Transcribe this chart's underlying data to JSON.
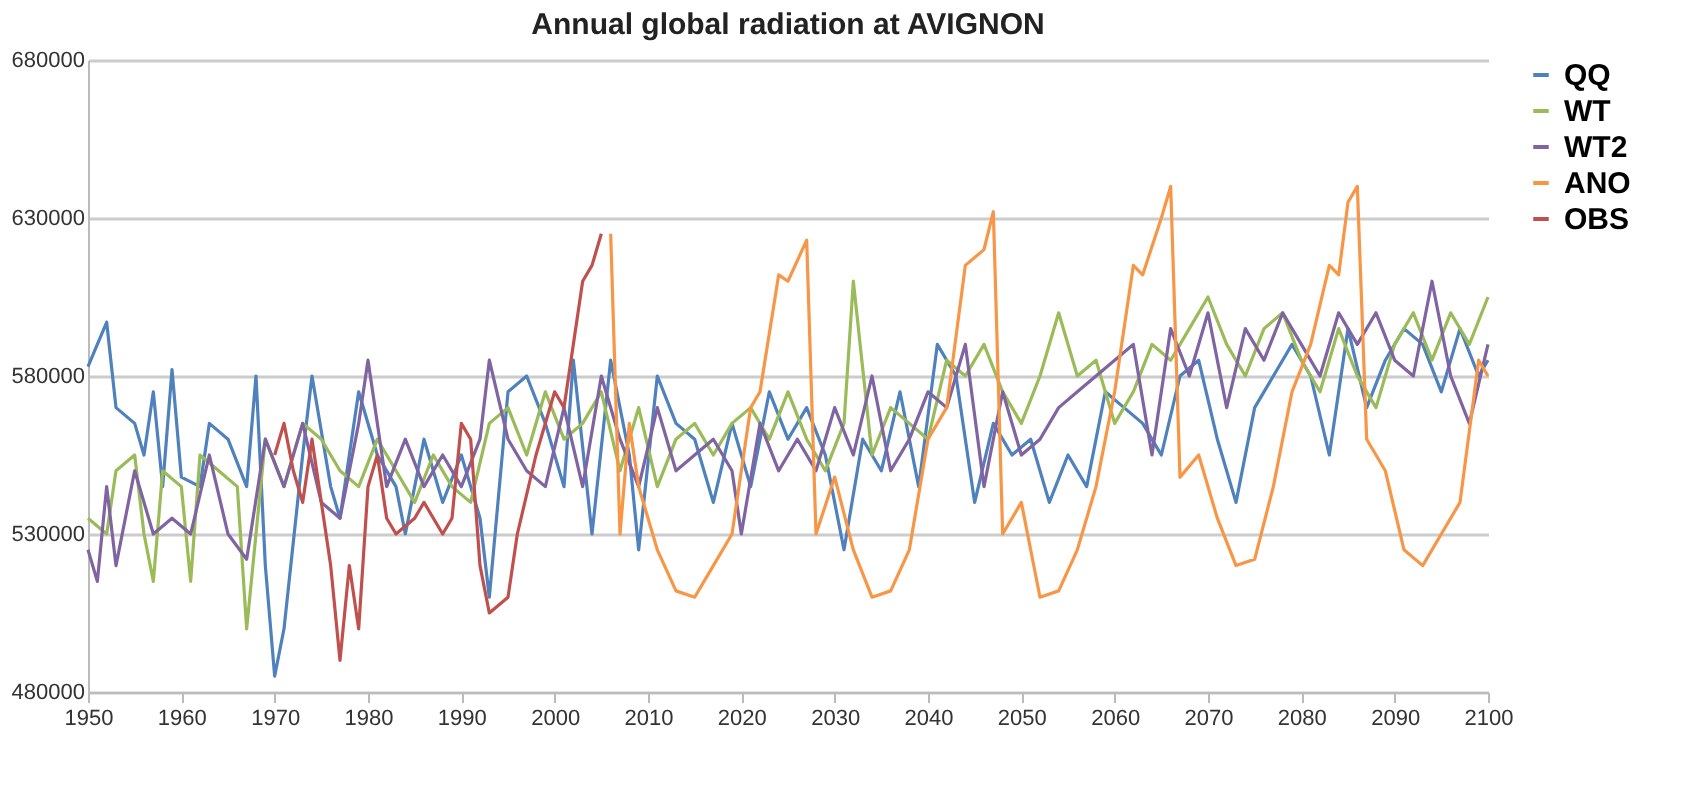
{
  "chart_data": {
    "type": "line",
    "title": "Annual global radiation at AVIGNON",
    "xlim": [
      1950,
      2100
    ],
    "xticks": [
      1950,
      1960,
      1970,
      1980,
      1990,
      2000,
      2010,
      2020,
      2030,
      2040,
      2050,
      2060,
      2070,
      2080,
      2090,
      2100
    ],
    "ylim": [
      480000,
      680000
    ],
    "yticks": [
      480000,
      530000,
      580000,
      630000,
      680000
    ],
    "grid": "y",
    "legend": "right",
    "marker": "none",
    "line_style": "solid",
    "series": [
      {
        "name": "QQ",
        "color": "#4f81bd",
        "x": [
          1950,
          1951,
          1952,
          1953,
          1955,
          1956,
          1957,
          1958,
          1959,
          1960,
          1962,
          1963,
          1965,
          1967,
          1968,
          1969,
          1970,
          1971,
          1973,
          1974,
          1976,
          1977,
          1979,
          1981,
          1983,
          1984,
          1986,
          1988,
          1990,
          1992,
          1993,
          1995,
          1997,
          1999,
          2001,
          2002,
          2004,
          2006,
          2008,
          2009,
          2011,
          2013,
          2015,
          2017,
          2019,
          2021,
          2023,
          2025,
          2027,
          2029,
          2031,
          2033,
          2035,
          2037,
          2039,
          2041,
          2043,
          2045,
          2047,
          2049,
          2051,
          2053,
          2055,
          2057,
          2059,
          2061,
          2063,
          2065,
          2067,
          2069,
          2071,
          2073,
          2075,
          2077,
          2079,
          2081,
          2083,
          2085,
          2087,
          2089,
          2091,
          2093,
          2095,
          2097,
          2099,
          2100
        ],
        "values": [
          583000,
          590000,
          597000,
          570000,
          565000,
          555000,
          575000,
          545000,
          582000,
          548000,
          545000,
          565000,
          560000,
          545000,
          580000,
          520000,
          485000,
          500000,
          555000,
          580000,
          545000,
          535000,
          575000,
          555000,
          545000,
          530000,
          560000,
          540000,
          555000,
          535000,
          510000,
          575000,
          580000,
          565000,
          545000,
          585000,
          530000,
          585000,
          555000,
          525000,
          580000,
          565000,
          560000,
          540000,
          565000,
          545000,
          575000,
          560000,
          570000,
          555000,
          525000,
          560000,
          550000,
          575000,
          545000,
          590000,
          580000,
          540000,
          565000,
          555000,
          560000,
          540000,
          555000,
          545000,
          575000,
          570000,
          565000,
          555000,
          580000,
          585000,
          560000,
          540000,
          570000,
          580000,
          590000,
          580000,
          555000,
          595000,
          570000,
          585000,
          595000,
          590000,
          575000,
          595000,
          580000,
          585000
        ]
      },
      {
        "name": "WT",
        "color": "#9bbb59",
        "x": [
          1950,
          1952,
          1953,
          1955,
          1956,
          1957,
          1958,
          1960,
          1961,
          1962,
          1964,
          1966,
          1967,
          1969,
          1971,
          1973,
          1975,
          1977,
          1979,
          1981,
          1983,
          1985,
          1987,
          1989,
          1991,
          1993,
          1995,
          1997,
          1999,
          2001,
          2003,
          2005,
          2007,
          2009,
          2011,
          2013,
          2015,
          2017,
          2019,
          2021,
          2023,
          2025,
          2027,
          2029,
          2031,
          2032,
          2034,
          2036,
          2038,
          2040,
          2042,
          2044,
          2046,
          2048,
          2050,
          2052,
          2054,
          2056,
          2058,
          2060,
          2062,
          2064,
          2066,
          2068,
          2070,
          2072,
          2074,
          2076,
          2078,
          2080,
          2082,
          2084,
          2086,
          2088,
          2090,
          2092,
          2094,
          2096,
          2098,
          2100
        ],
        "values": [
          535000,
          530000,
          550000,
          555000,
          530000,
          515000,
          550000,
          545000,
          515000,
          555000,
          550000,
          545000,
          500000,
          560000,
          545000,
          565000,
          560000,
          550000,
          545000,
          560000,
          550000,
          540000,
          555000,
          545000,
          540000,
          565000,
          570000,
          555000,
          575000,
          560000,
          565000,
          575000,
          550000,
          570000,
          545000,
          560000,
          565000,
          555000,
          565000,
          570000,
          560000,
          575000,
          560000,
          550000,
          565000,
          610000,
          555000,
          570000,
          565000,
          560000,
          585000,
          580000,
          590000,
          575000,
          565000,
          580000,
          600000,
          580000,
          585000,
          565000,
          575000,
          590000,
          585000,
          595000,
          605000,
          590000,
          580000,
          595000,
          600000,
          585000,
          575000,
          595000,
          580000,
          570000,
          590000,
          600000,
          585000,
          600000,
          590000,
          605000
        ]
      },
      {
        "name": "WT2",
        "color": "#8064a2",
        "x": [
          1950,
          1951,
          1952,
          1953,
          1955,
          1957,
          1959,
          1961,
          1963,
          1965,
          1967,
          1969,
          1971,
          1973,
          1975,
          1977,
          1979,
          1980,
          1982,
          1984,
          1986,
          1988,
          1990,
          1992,
          1993,
          1995,
          1997,
          1999,
          2001,
          2003,
          2005,
          2007,
          2009,
          2011,
          2013,
          2015,
          2017,
          2019,
          2020,
          2022,
          2024,
          2026,
          2028,
          2030,
          2032,
          2034,
          2036,
          2038,
          2040,
          2042,
          2044,
          2046,
          2048,
          2050,
          2052,
          2054,
          2056,
          2058,
          2060,
          2062,
          2064,
          2066,
          2068,
          2070,
          2072,
          2074,
          2076,
          2078,
          2080,
          2082,
          2084,
          2086,
          2088,
          2090,
          2092,
          2094,
          2096,
          2098,
          2100
        ],
        "values": [
          525000,
          515000,
          545000,
          520000,
          550000,
          530000,
          535000,
          530000,
          555000,
          530000,
          522000,
          560000,
          545000,
          565000,
          540000,
          535000,
          565000,
          585000,
          545000,
          560000,
          545000,
          555000,
          545000,
          560000,
          585000,
          560000,
          550000,
          545000,
          570000,
          545000,
          580000,
          560000,
          545000,
          570000,
          550000,
          555000,
          560000,
          550000,
          530000,
          565000,
          550000,
          560000,
          550000,
          570000,
          555000,
          580000,
          550000,
          560000,
          575000,
          570000,
          590000,
          545000,
          575000,
          555000,
          560000,
          570000,
          575000,
          580000,
          585000,
          590000,
          555000,
          595000,
          580000,
          600000,
          570000,
          595000,
          585000,
          600000,
          590000,
          580000,
          600000,
          590000,
          600000,
          585000,
          580000,
          610000,
          580000,
          565000,
          590000
        ]
      },
      {
        "name": "ANO",
        "color": "#f79646",
        "x": [
          2006,
          2007,
          2008,
          2009,
          2011,
          2013,
          2015,
          2017,
          2019,
          2021,
          2022,
          2024,
          2025,
          2027,
          2028,
          2030,
          2032,
          2034,
          2036,
          2038,
          2040,
          2042,
          2044,
          2046,
          2047,
          2048,
          2050,
          2052,
          2054,
          2056,
          2058,
          2060,
          2062,
          2063,
          2065,
          2066,
          2067,
          2069,
          2071,
          2073,
          2075,
          2077,
          2079,
          2081,
          2083,
          2084,
          2085,
          2086,
          2087,
          2089,
          2091,
          2093,
          2095,
          2097,
          2099,
          2100
        ],
        "values": [
          625000,
          530000,
          565000,
          545000,
          525000,
          512000,
          510000,
          520000,
          530000,
          570000,
          575000,
          612000,
          610000,
          623000,
          530000,
          548000,
          525000,
          510000,
          512000,
          525000,
          560000,
          570000,
          615000,
          620000,
          632000,
          530000,
          540000,
          510000,
          512000,
          525000,
          545000,
          575000,
          615000,
          612000,
          630000,
          640000,
          548000,
          555000,
          535000,
          520000,
          522000,
          545000,
          575000,
          590000,
          615000,
          612000,
          635000,
          640000,
          560000,
          550000,
          525000,
          520000,
          530000,
          540000,
          585000,
          580000
        ]
      },
      {
        "name": "OBS",
        "color": "#c0504d",
        "x": [
          1970,
          1971,
          1972,
          1973,
          1974,
          1975,
          1976,
          1977,
          1978,
          1979,
          1980,
          1981,
          1982,
          1983,
          1985,
          1986,
          1988,
          1989,
          1990,
          1991,
          1992,
          1993,
          1995,
          1996,
          1998,
          2000,
          2001,
          2002,
          2003,
          2004,
          2005
        ],
        "values": [
          555000,
          565000,
          550000,
          540000,
          560000,
          540000,
          520000,
          490000,
          520000,
          500000,
          545000,
          555000,
          535000,
          530000,
          535000,
          540000,
          530000,
          535000,
          565000,
          560000,
          520000,
          505000,
          510000,
          530000,
          555000,
          575000,
          570000,
          590000,
          610000,
          615000,
          625000
        ]
      }
    ]
  }
}
